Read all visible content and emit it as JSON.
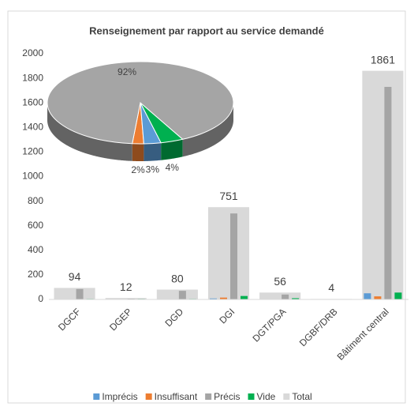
{
  "chart_data": [
    {
      "type": "bar",
      "title": "Renseignement par rapport au service demandé",
      "categories": [
        "DGCF",
        "DGEP",
        "DGD",
        "DGI",
        "DGT/PGA",
        "DGBF/DRB",
        "Bâtiment central"
      ],
      "series": [
        {
          "name": "Imprécis",
          "color": "#5b9bd5",
          "values": [
            3,
            2,
            3,
            8,
            3,
            1,
            50
          ]
        },
        {
          "name": "Insuffisant",
          "color": "#ed7d31",
          "values": [
            2,
            1,
            3,
            15,
            3,
            1,
            25
          ]
        },
        {
          "name": "Précis",
          "color": "#a5a5a5",
          "values": [
            85,
            5,
            70,
            700,
            40,
            2,
            1730
          ]
        },
        {
          "name": "Vide",
          "color": "#00b050",
          "values": [
            4,
            4,
            4,
            28,
            10,
            0,
            56
          ]
        },
        {
          "name": "Total",
          "color": "#d9d9d9",
          "values": [
            94,
            12,
            80,
            751,
            56,
            4,
            1861
          ]
        }
      ],
      "ylim": [
        0,
        2000
      ],
      "yticks": [
        0,
        200,
        400,
        600,
        800,
        1000,
        1200,
        1400,
        1600,
        1800,
        2000
      ],
      "grid": false,
      "legend": "bottom"
    },
    {
      "type": "pie",
      "values": [
        2,
        3,
        4,
        92
      ],
      "value_labels": [
        "2%",
        "3%",
        "4%",
        "92%"
      ],
      "colors": [
        "#ed7d31",
        "#5b9bd5",
        "#00b050",
        "#a5a5a5"
      ]
    }
  ]
}
